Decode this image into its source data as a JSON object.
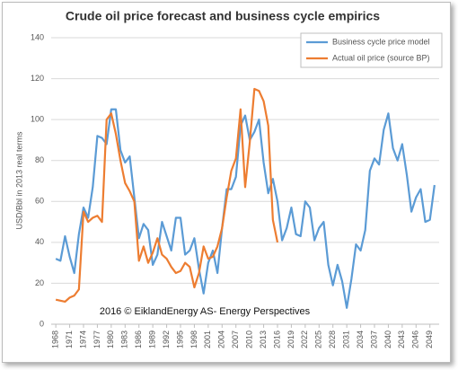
{
  "chart_data": {
    "type": "line",
    "title": "Crude oil price forecast and business cycle empirics",
    "y_label": "USD/Bbl in 2013 real terms",
    "annotation": "2016 © EiklandEnergy AS- Energy Perspectives",
    "x": [
      1968,
      1969,
      1970,
      1971,
      1972,
      1973,
      1974,
      1975,
      1976,
      1977,
      1978,
      1979,
      1980,
      1981,
      1982,
      1983,
      1984,
      1985,
      1986,
      1987,
      1988,
      1989,
      1990,
      1991,
      1992,
      1993,
      1994,
      1995,
      1996,
      1997,
      1998,
      1999,
      2000,
      2001,
      2002,
      2003,
      2004,
      2005,
      2006,
      2007,
      2008,
      2009,
      2010,
      2011,
      2012,
      2013,
      2014,
      2015,
      2016,
      2017,
      2018,
      2019,
      2020,
      2021,
      2022,
      2023,
      2024,
      2025,
      2026,
      2027,
      2028,
      2029,
      2030,
      2031,
      2032,
      2033,
      2034,
      2035,
      2036,
      2037,
      2038,
      2039,
      2040,
      2041,
      2042,
      2043,
      2044,
      2045,
      2046,
      2047,
      2048,
      2049,
      2050
    ],
    "series": [
      {
        "name": "Business cycle price model",
        "color": "#5b9bd5",
        "values": [
          32,
          31,
          43,
          33,
          25,
          44,
          57,
          52,
          67,
          92,
          91,
          88,
          105,
          105,
          85,
          79,
          82,
          62,
          42,
          49,
          46,
          29,
          34,
          50,
          43,
          36,
          52,
          52,
          34,
          36,
          42,
          27,
          15,
          30,
          36,
          25,
          47,
          66,
          66,
          72,
          97,
          102,
          90,
          94,
          100,
          79,
          64,
          71,
          60,
          41,
          47,
          57,
          44,
          43,
          60,
          57,
          41,
          47,
          50,
          29,
          19,
          29,
          21,
          8,
          22,
          39,
          36,
          46,
          75,
          81,
          78,
          95,
          103,
          86,
          80,
          88,
          73,
          55,
          62,
          66,
          50,
          51,
          68
        ]
      },
      {
        "name": "Actual oil price (source BP)",
        "color": "#ed7d31",
        "values": [
          12,
          11.5,
          11,
          13,
          14,
          17,
          55,
          50,
          52,
          53,
          50,
          100,
          103,
          93,
          80,
          69,
          65,
          60,
          31,
          38,
          30,
          35,
          42,
          34,
          32,
          28,
          25,
          26,
          30,
          28,
          18,
          25,
          38,
          32,
          33,
          38,
          47,
          62,
          75,
          81,
          105,
          67,
          89,
          115,
          114,
          109,
          97,
          51,
          40,
          null,
          null,
          null,
          null,
          null,
          null,
          null,
          null,
          null,
          null,
          null,
          null,
          null,
          null,
          null,
          null,
          null,
          null,
          null,
          null,
          null,
          null,
          null,
          null,
          null,
          null,
          null,
          null,
          null,
          null,
          null,
          null,
          null,
          null
        ]
      }
    ],
    "xlim": [
      1967,
      2051
    ],
    "xticks": [
      1968,
      1971,
      1974,
      1977,
      1980,
      1983,
      1986,
      1989,
      1992,
      1995,
      1998,
      2001,
      2004,
      2007,
      2010,
      2013,
      2016,
      2019,
      2022,
      2025,
      2028,
      2031,
      2034,
      2037,
      2040,
      2043,
      2046,
      2049
    ],
    "ylim": [
      0,
      140
    ],
    "yticks": [
      0,
      20,
      40,
      60,
      80,
      100,
      120,
      140
    ],
    "grid": true,
    "legend": "top-right"
  }
}
